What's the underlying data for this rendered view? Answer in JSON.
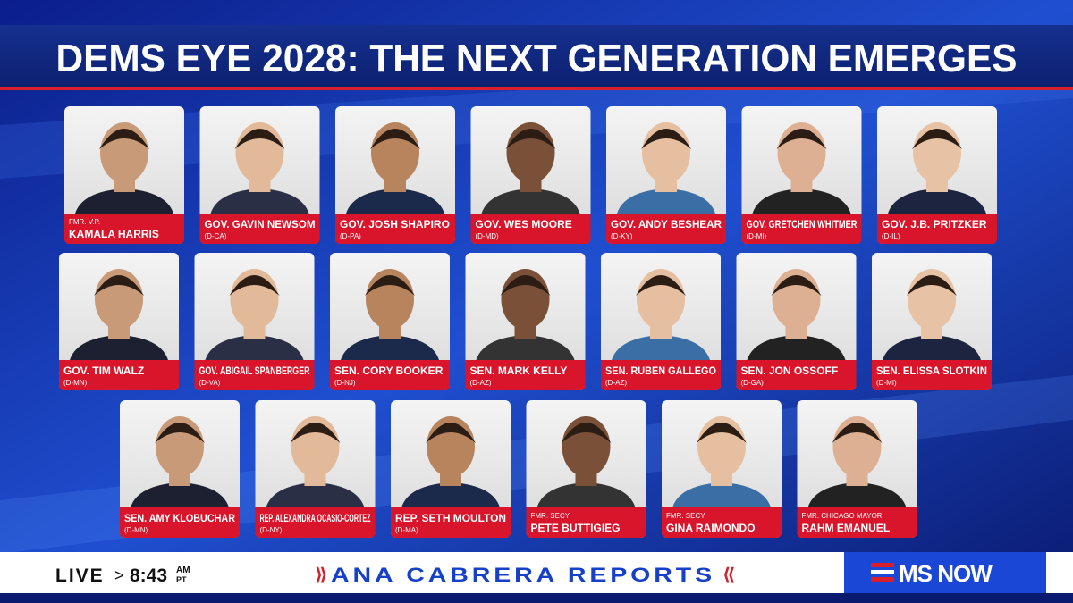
{
  "title": "DEMS EYE 2028: THE NEXT GENERATION EMERGES",
  "rows": [
    [
      {
        "top": "FMR. V.P.",
        "name": "KAMALA HARRIS"
      },
      {
        "name": "GOV. GAVIN NEWSOM",
        "bottom": "(D-CA)"
      },
      {
        "name": "GOV. JOSH SHAPIRO",
        "bottom": "(D-PA)"
      },
      {
        "name": "GOV. WES MOORE",
        "bottom": "(D-MD)"
      },
      {
        "name": "GOV. ANDY BESHEAR",
        "bottom": "(D-KY)"
      },
      {
        "name": "GOV. GRETCHEN WHITMER",
        "bottom": "(D-MI)"
      },
      {
        "name": "GOV. J.B. PRITZKER",
        "bottom": "(D-IL)"
      }
    ],
    [
      {
        "name": "GOV. TIM WALZ",
        "bottom": "(D-MN)"
      },
      {
        "name": "GOV. ABIGAIL SPANBERGER",
        "bottom": "(D-VA)"
      },
      {
        "name": "SEN. CORY BOOKER",
        "bottom": "(D-NJ)"
      },
      {
        "name": "SEN. MARK KELLY",
        "bottom": "(D-AZ)"
      },
      {
        "name": "SEN. RUBEN GALLEGO",
        "bottom": "(D-AZ)"
      },
      {
        "name": "SEN. JON OSSOFF",
        "bottom": "(D-GA)"
      },
      {
        "name": "SEN. ELISSA SLOTKIN",
        "bottom": "(D-MI)"
      }
    ],
    [
      {
        "name": "SEN. AMY KLOBUCHAR",
        "bottom": "(D-MN)"
      },
      {
        "name": "REP. ALEXANDRA OCASIO-CORTEZ",
        "bottom": "(D-NY)"
      },
      {
        "name": "REP. SETH MOULTON",
        "bottom": "(D-MA)"
      },
      {
        "top": "FMR. SECY",
        "name": "PETE BUTTIGIEG"
      },
      {
        "top": "FMR. SECY",
        "name": "GINA RAIMONDO"
      },
      {
        "top": "FMR. CHICAGO MAYOR",
        "name": "RAHM EMANUEL"
      }
    ]
  ],
  "ticker": {
    "live": "LIVE",
    "arrow": ">",
    "time": "8:43",
    "ampm": "AM",
    "zone": "PT",
    "show": "ANA CABRERA REPORTS",
    "network": "MS NOW"
  }
}
